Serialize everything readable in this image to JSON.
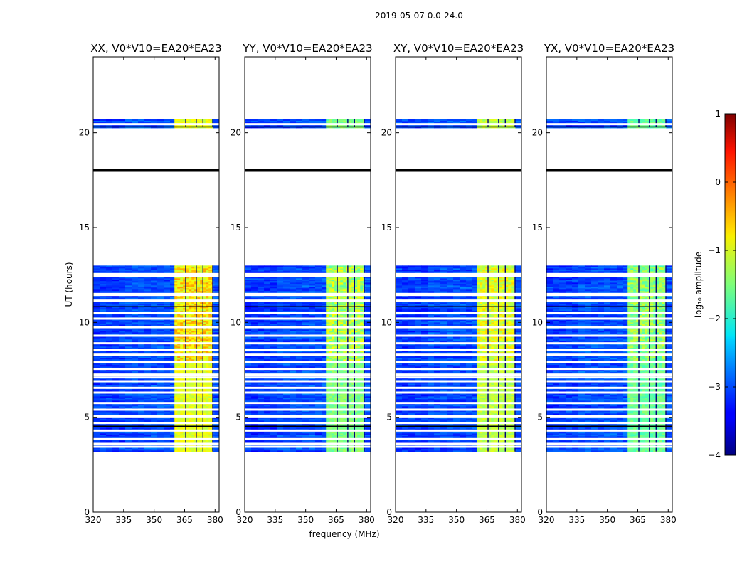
{
  "chart_data": {
    "type": "heatmap",
    "suptitle": "2019-05-07 0.0-24.0",
    "xlabel": "frequency (MHz)",
    "ylabel": "UT (hours)",
    "xlim": [
      320,
      382
    ],
    "ylim": [
      0,
      24
    ],
    "xticks": [
      320,
      335,
      350,
      365,
      380
    ],
    "yticks": [
      0,
      5,
      10,
      15,
      20
    ],
    "panels": [
      {
        "title": "XX, V0*V10=EA20*EA23",
        "band_level": -1.0,
        "band_peak": -0.5
      },
      {
        "title": "YY, V0*V10=EA20*EA23",
        "band_level": -1.5,
        "band_peak": -1.0
      },
      {
        "title": "XY, V0*V10=EA20*EA23",
        "band_level": -1.2,
        "band_peak": -0.8
      },
      {
        "title": "YX, V0*V10=EA20*EA23",
        "band_level": -1.6,
        "band_peak": -1.2
      }
    ],
    "background_level": -3.0,
    "band_freq_range": [
      360,
      379
    ],
    "data_time_blocks": [
      [
        3.2,
        13.0
      ],
      [
        20.3,
        20.7
      ]
    ],
    "flagged_gaps_hours": [
      3.45,
      3.6,
      3.85,
      4.3,
      4.7,
      5.05,
      5.4,
      5.75,
      6.3,
      6.55,
      6.9,
      7.1,
      7.25,
      7.55,
      7.9,
      8.3,
      8.55,
      8.9,
      9.3,
      9.75,
      10.2,
      10.5,
      11.15,
      11.45,
      11.5,
      12.45,
      12.55,
      20.45
    ],
    "dark_lines_hours": [
      4.5,
      10.8,
      18.0,
      18.03,
      20.28
    ],
    "colorbar": {
      "label": "log₁₀ amplitude",
      "range": [
        -4,
        1
      ],
      "ticks": [
        1,
        0,
        -1,
        -2,
        -3,
        -4
      ],
      "tick_labels": [
        "1",
        "0",
        "−1",
        "−2",
        "−3",
        "−4"
      ],
      "colormap": "jet"
    }
  }
}
